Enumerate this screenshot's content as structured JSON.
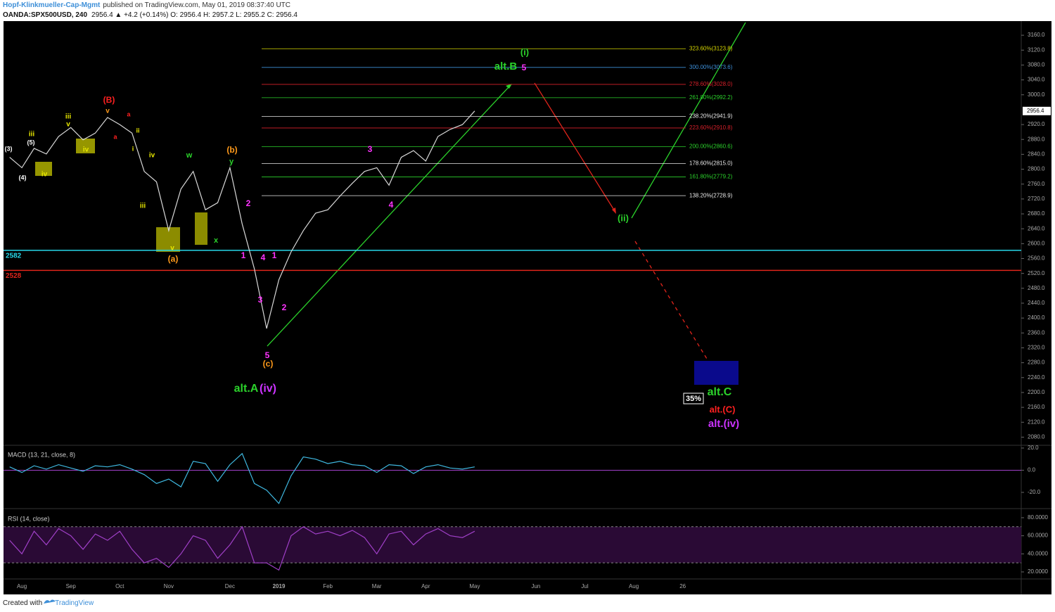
{
  "header": {
    "author": "Hopf-Klinkmueller-Cap-Mgmt",
    "published": "published on TradingView.com, May 01, 2019 08:37:40 UTC",
    "symbol": "OANDA:SPX500USD, 240",
    "quote": "2956.4 ▲ +4.2 (+0.14%) O: 2956.4 H: 2957.2 L: 2955.2 C: 2956.4"
  },
  "footer": {
    "text": "Created with",
    "brand": "TradingView"
  },
  "chart_data": [
    {
      "type": "line",
      "color": "#d8d8d8",
      "categories": [
        null,
        "Aug",
        null,
        null,
        null,
        "Sep",
        null,
        null,
        null,
        "Oct",
        null,
        null,
        null,
        "Nov",
        null,
        null,
        null,
        null,
        "Dec",
        null,
        null,
        null,
        "2019",
        null,
        null,
        null,
        "Feb",
        null,
        null,
        null,
        "Mar",
        null,
        null,
        null,
        "Apr",
        null,
        null,
        null,
        "May",
        null,
        null,
        null,
        null,
        "Jun",
        null,
        null,
        null,
        "Jul",
        null,
        null,
        null,
        "Aug",
        null,
        null,
        null,
        "26",
        null,
        null,
        null,
        null,
        null,
        null,
        null,
        null,
        null,
        null,
        null,
        null,
        null,
        null,
        null,
        null,
        null,
        null,
        null,
        null,
        null,
        null,
        null,
        null,
        null,
        null,
        null
      ],
      "values": [
        2832,
        2804,
        2856,
        2841,
        2888,
        2912,
        2879,
        2897,
        2939,
        2920,
        2897,
        2794,
        2766,
        2635,
        2747,
        2794,
        2691,
        2710,
        2804,
        2653,
        2532,
        2372,
        2503,
        2578,
        2635,
        2682,
        2691,
        2728,
        2762,
        2794,
        2804,
        2757,
        2832,
        2850,
        2822,
        2888,
        2907,
        2920,
        2956.4,
        null,
        null,
        null,
        null,
        null,
        null,
        null,
        null,
        null,
        null,
        null,
        null,
        null,
        null,
        null,
        null,
        null,
        null,
        null,
        null,
        null,
        null,
        null,
        null,
        null,
        null,
        null,
        null,
        null,
        null,
        null,
        null,
        null,
        null,
        null,
        null,
        null,
        null,
        null,
        null,
        null,
        null,
        null,
        null
      ],
      "last": 2956.4,
      "ylim": [
        2060,
        3198
      ],
      "yticks": [
        {
          "value": 3160,
          "label": "3160.0"
        },
        {
          "value": 3120,
          "label": "3120.0"
        },
        {
          "value": 3080,
          "label": "3080.0"
        },
        {
          "value": 3040,
          "label": "3040.0"
        },
        {
          "value": 3000,
          "label": "3000.0"
        },
        {
          "value": 2920,
          "label": "2920.0"
        },
        {
          "value": 2880,
          "label": "2880.0"
        },
        {
          "value": 2840,
          "label": "2840.0"
        },
        {
          "value": 2800,
          "label": "2800.0"
        },
        {
          "value": 2760,
          "label": "2760.0"
        },
        {
          "value": 2720,
          "label": "2720.0"
        },
        {
          "value": 2680,
          "label": "2680.0"
        },
        {
          "value": 2640,
          "label": "2640.0"
        },
        {
          "value": 2600,
          "label": "2600.0"
        },
        {
          "value": 2560,
          "label": "2560.0"
        },
        {
          "value": 2520,
          "label": "2520.0"
        },
        {
          "value": 2480,
          "label": "2480.0"
        },
        {
          "value": 2440,
          "label": "2440.0"
        },
        {
          "value": 2400,
          "label": "2400.0"
        },
        {
          "value": 2360,
          "label": "2360.0"
        },
        {
          "value": 2320,
          "label": "2320.0"
        },
        {
          "value": 2280,
          "label": "2280.0"
        },
        {
          "value": 2240,
          "label": "2240.0"
        },
        {
          "value": 2200,
          "label": "2200.0"
        },
        {
          "value": 2160,
          "label": "2160.0"
        },
        {
          "value": 2120,
          "label": "2120.0"
        },
        {
          "value": 2080,
          "label": "2080.0"
        }
      ],
      "hlines": [
        {
          "value": 2582,
          "color": "#26d7e8"
        },
        {
          "value": 2528,
          "color": "#e0241b"
        }
      ],
      "levels": [
        {
          "value": 3123.8,
          "label": "323.60%(3123.8)",
          "color": "#d8d800"
        },
        {
          "value": 3073.6,
          "label": "300.00%(3073.6)",
          "color": "#3d8fd8"
        },
        {
          "value": 3028.0,
          "label": "278.60%(3028.0)",
          "color": "#d8202a"
        },
        {
          "value": 2992.2,
          "label": "261.80%(2992.2)",
          "color": "#2bd22b"
        },
        {
          "value": 2941.9,
          "label": "238.20%(2941.9)",
          "color": "#e8e8e8"
        },
        {
          "value": 2910.8,
          "label": "223.60%(2910.8)",
          "color": "#d8202a"
        },
        {
          "value": 2860.6,
          "label": "200.00%(2860.6)",
          "color": "#2bd22b"
        },
        {
          "value": 2815.0,
          "label": "178.60%(2815.0)",
          "color": "#e8e8e8"
        },
        {
          "value": 2779.2,
          "label": "161.80%(2779.2)",
          "color": "#2bd22b"
        },
        {
          "value": 2728.9,
          "label": "138.20%(2728.9)",
          "color": "#e8e8e8"
        }
      ],
      "annotations": [
        {
          "text": "(3)",
          "color": "#ffffff"
        },
        {
          "text": "(5)",
          "color": "#ffffff"
        },
        {
          "text": "(4)",
          "color": "#ffffff"
        },
        {
          "text": "iii",
          "color": "#e8e800"
        },
        {
          "text": "iv",
          "color": "#e8e800"
        },
        {
          "text": "iii",
          "color": "#e8e800"
        },
        {
          "text": "v",
          "color": "#e8e800"
        },
        {
          "text": "iv",
          "color": "#e8e800"
        },
        {
          "text": "(B)",
          "color": "#ff2020"
        },
        {
          "text": "v",
          "color": "#ff9a1a"
        },
        {
          "text": "a",
          "color": "#ff2020"
        },
        {
          "text": "a",
          "color": "#ff2020"
        },
        {
          "text": "ii",
          "color": "#e8e800"
        },
        {
          "text": "i",
          "color": "#e8e800"
        },
        {
          "text": "iv",
          "color": "#e8e800"
        },
        {
          "text": "iii",
          "color": "#e8e800"
        },
        {
          "text": "v",
          "color": "#e8e800"
        },
        {
          "text": "(a)",
          "color": "#ff9a1a"
        },
        {
          "text": "w",
          "color": "#2bd22b"
        },
        {
          "text": "x",
          "color": "#2bd22b"
        },
        {
          "text": "(b)",
          "color": "#ff9a1a"
        },
        {
          "text": "y",
          "color": "#2bd22b"
        },
        {
          "text": "2",
          "color": "#ff33ff"
        },
        {
          "text": "1",
          "color": "#ff33ff"
        },
        {
          "text": "4",
          "color": "#ff33ff"
        },
        {
          "text": "1",
          "color": "#ff33ff"
        },
        {
          "text": "3",
          "color": "#ff33ff"
        },
        {
          "text": "2",
          "color": "#ff33ff"
        },
        {
          "text": "5",
          "color": "#ff33ff"
        },
        {
          "text": "(c)",
          "color": "#ff9a1a"
        },
        {
          "text": "alt.A",
          "color": "#2bd22b"
        },
        {
          "text": "(iv)",
          "color": "#cc33ff"
        },
        {
          "text": "3",
          "color": "#ff33ff"
        },
        {
          "text": "4",
          "color": "#ff33ff"
        },
        {
          "text": "(i)",
          "color": "#2bd22b"
        },
        {
          "text": "alt.B",
          "color": "#2bd22b"
        },
        {
          "text": "5",
          "color": "#ff33ff"
        },
        {
          "text": "(ii)",
          "color": "#2bd22b"
        },
        {
          "text": "alt.C",
          "color": "#2bd22b"
        },
        {
          "text": "alt.(C)",
          "color": "#ff2020"
        },
        {
          "text": "alt.(iv)",
          "color": "#cc33ff"
        },
        {
          "text": "35%",
          "color": "#ffffff"
        }
      ]
    },
    {
      "type": "line",
      "title": "MACD (13, 21, close, 8)",
      "color": "#3fb8e0",
      "ylim": [
        -34,
        22.5
      ],
      "zero": 0,
      "values": [
        3,
        -2,
        4,
        1,
        5,
        2,
        -1,
        4,
        3,
        5,
        1,
        -4,
        -12,
        -8,
        -15,
        8,
        6,
        -10,
        5,
        15,
        -12,
        -18,
        -30,
        -5,
        12,
        10,
        6,
        8,
        5,
        4,
        -2,
        5,
        4,
        -3,
        3,
        5,
        2,
        1,
        3
      ],
      "yticks": [
        {
          "value": 20,
          "label": "20.0"
        },
        {
          "value": 0,
          "label": "0.0"
        },
        {
          "value": -20,
          "label": "-20.0"
        }
      ]
    },
    {
      "type": "line",
      "title": "RSI (14, close)",
      "color": "#a040c8",
      "ylim": [
        13,
        89.3
      ],
      "bands": [
        70,
        30
      ],
      "values": [
        55,
        40,
        65,
        50,
        68,
        60,
        45,
        62,
        55,
        65,
        45,
        30,
        35,
        25,
        40,
        60,
        55,
        35,
        50,
        70,
        30,
        30,
        22,
        60,
        70,
        62,
        65,
        60,
        66,
        58,
        40,
        62,
        65,
        50,
        62,
        68,
        60,
        58,
        65
      ],
      "yticks": [
        {
          "value": 80,
          "label": "80.0000"
        },
        {
          "value": 60,
          "label": "60.0000"
        },
        {
          "value": 40,
          "label": "40.0000"
        },
        {
          "value": 20,
          "label": "20.0000"
        }
      ]
    }
  ]
}
